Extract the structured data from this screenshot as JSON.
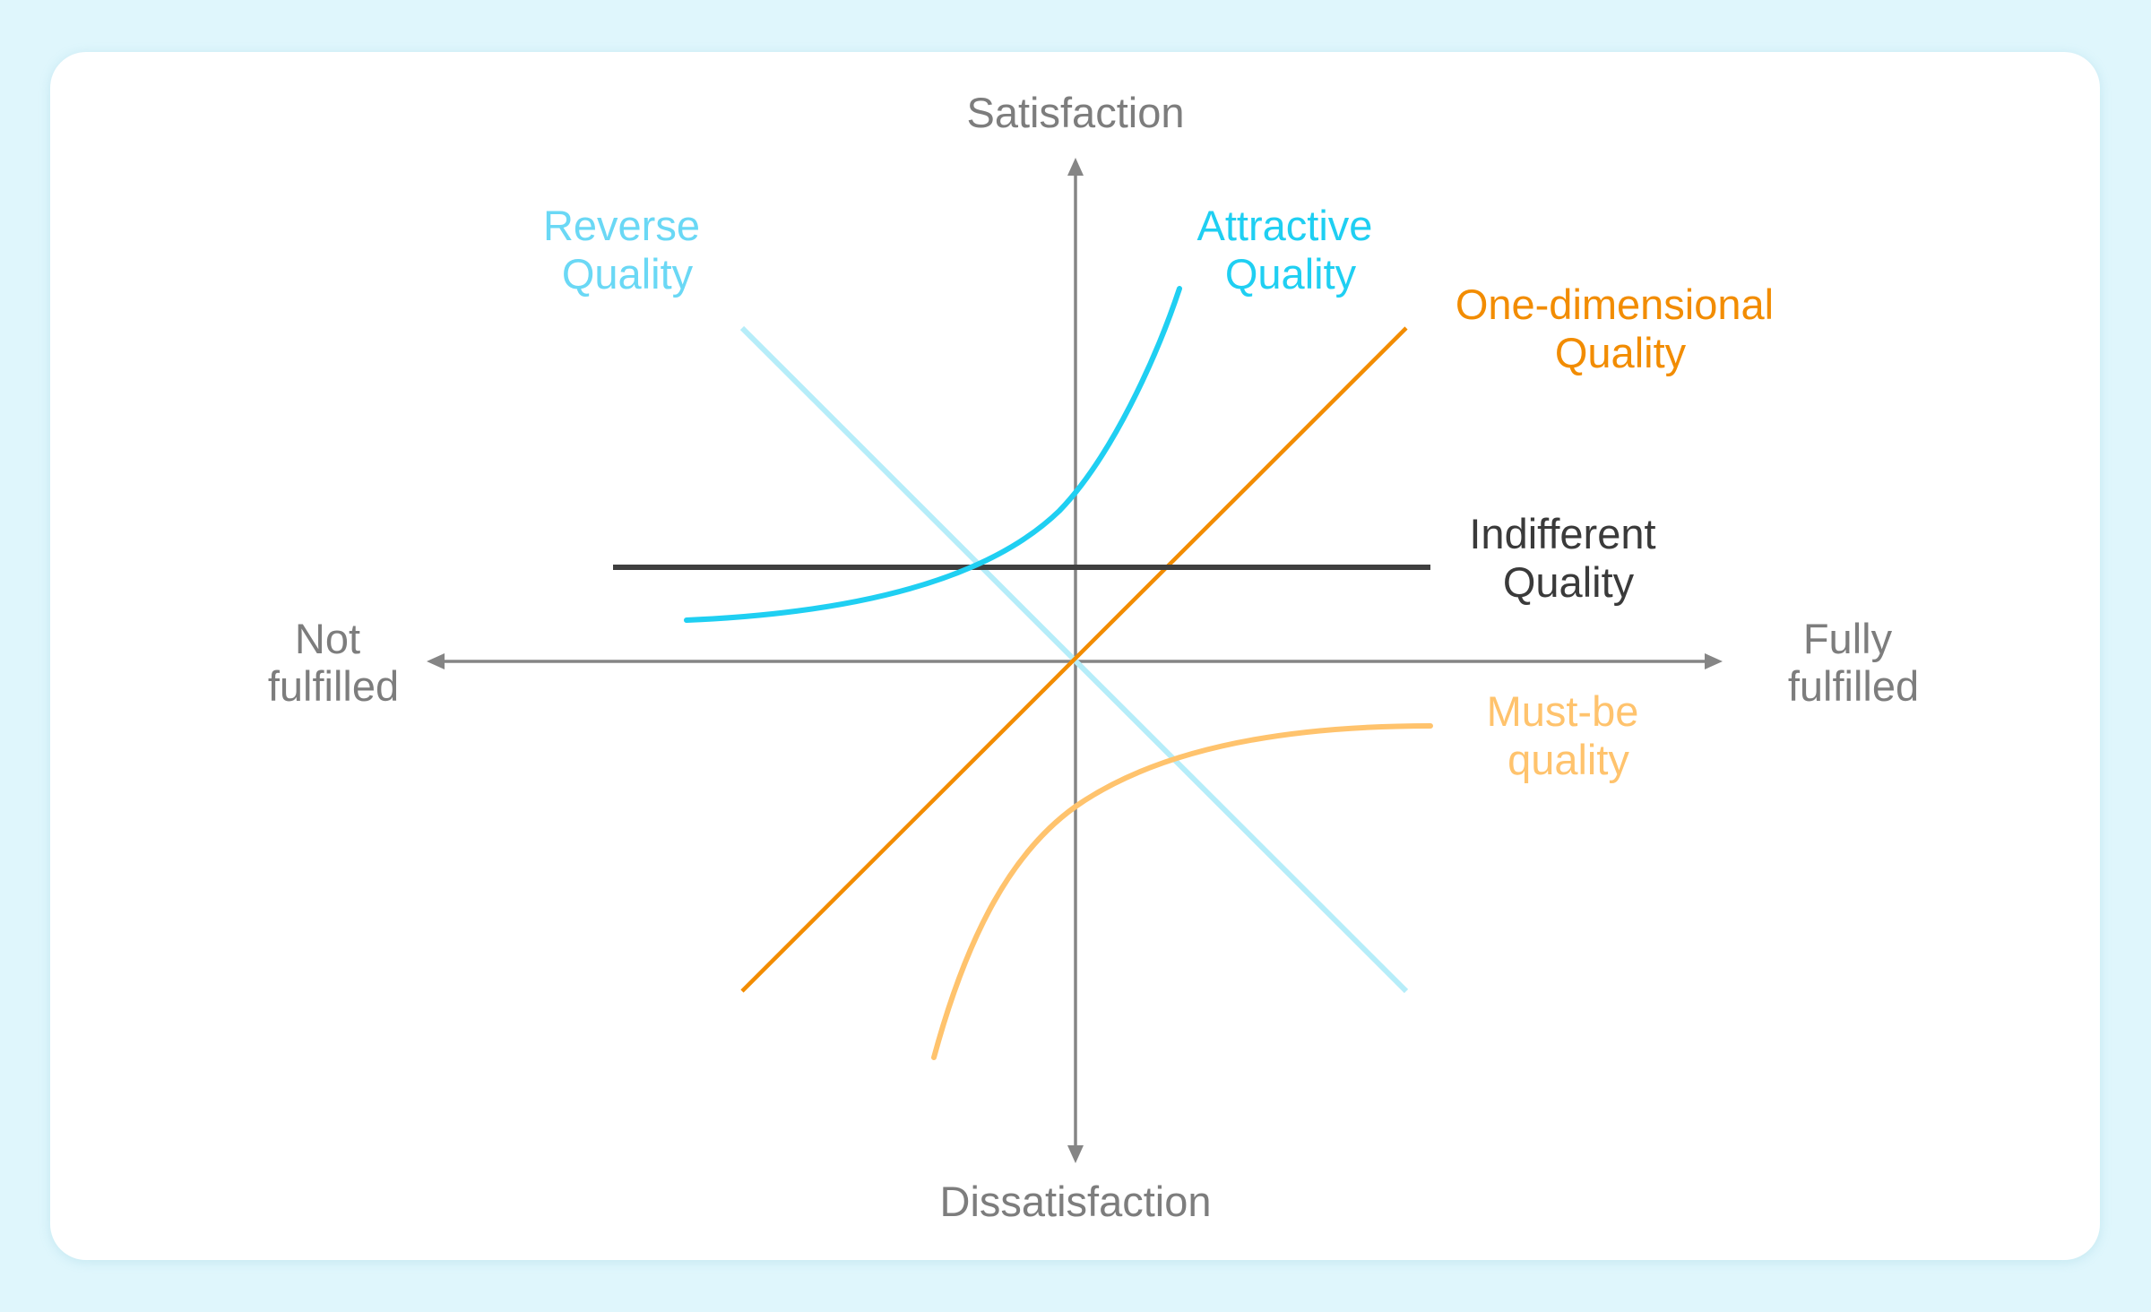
{
  "axes": {
    "top": "Satisfaction",
    "bottom": "Dissatisfaction",
    "left": [
      "Not",
      "fulfilled"
    ],
    "right": [
      "Fully",
      "fulfilled"
    ]
  },
  "curves": {
    "reverse": {
      "label": [
        "Reverse",
        "Quality"
      ],
      "color": "#6ad8f5",
      "line_color": "#b6edf9"
    },
    "attractive": {
      "label": [
        "Attractive",
        "Quality"
      ],
      "color": "#1fcff2",
      "line_color": "#1fcff2"
    },
    "one_dimensional": {
      "label": [
        "One-dimensional",
        "Quality"
      ],
      "color": "#f28c00",
      "line_color": "#f28c00"
    },
    "indifferent": {
      "label": [
        "Indifferent",
        "Quality"
      ],
      "color": "#3a3a3a",
      "line_color": "#3f3f3f"
    },
    "must_be": {
      "label": [
        "Must-be",
        "quality"
      ],
      "color": "#ffc36d",
      "line_color": "#ffc36d"
    }
  },
  "colors": {
    "axis": "#858585",
    "axis_label": "#7d7d7d",
    "background": "#dff6fc",
    "card": "#ffffff"
  }
}
